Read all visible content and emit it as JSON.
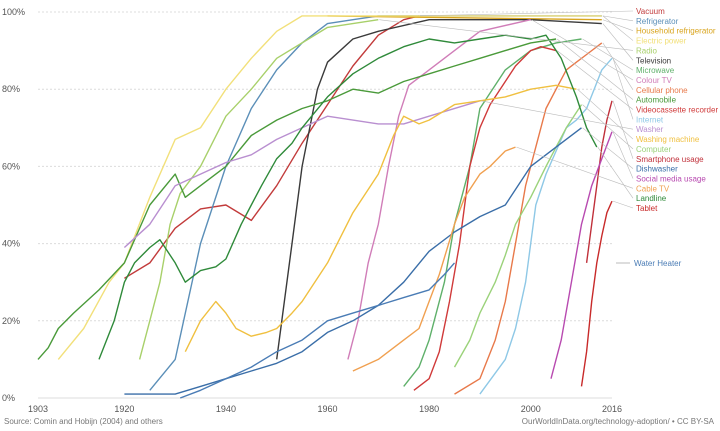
{
  "footer": {
    "source": "Source: Comin and Hobijn (2004) and others",
    "credit": "OurWorldInData.org/technology-adoption/ • CC BY-SA"
  },
  "chart_data": {
    "type": "line",
    "title": "",
    "xlabel": "",
    "ylabel": "",
    "xlim": [
      1903,
      2016
    ],
    "ylim": [
      0,
      100
    ],
    "x_ticks": [
      1903,
      1920,
      1940,
      1960,
      1980,
      2000,
      2016
    ],
    "y_ticks": [
      0,
      20,
      40,
      60,
      80,
      100
    ],
    "y_tick_suffix": "%",
    "grid": "horizontal",
    "legend_position": "right",
    "series": [
      {
        "name": "Vacuum",
        "color": "#c23b3b",
        "points": [
          [
            1920,
            31
          ],
          [
            1925,
            35
          ],
          [
            1930,
            44
          ],
          [
            1935,
            49
          ],
          [
            1940,
            50
          ],
          [
            1945,
            46
          ],
          [
            1950,
            55
          ],
          [
            1955,
            66
          ],
          [
            1960,
            76
          ],
          [
            1965,
            86
          ],
          [
            1970,
            94
          ],
          [
            1975,
            98
          ],
          [
            1978,
            99
          ]
        ]
      },
      {
        "name": "Refrigerator",
        "color": "#5b8fb8",
        "points": [
          [
            1925,
            2
          ],
          [
            1930,
            10
          ],
          [
            1935,
            40
          ],
          [
            1940,
            60
          ],
          [
            1945,
            75
          ],
          [
            1950,
            85
          ],
          [
            1955,
            92
          ],
          [
            1960,
            97
          ],
          [
            1965,
            98
          ],
          [
            1970,
            99
          ],
          [
            2014,
            99
          ]
        ]
      },
      {
        "name": "Household refrigerator",
        "color": "#d9a51f",
        "points": [
          [
            1960,
            99
          ],
          [
            2014,
            98
          ]
        ]
      },
      {
        "name": "Electric power",
        "color": "#f2e07a",
        "points": [
          [
            1907,
            10
          ],
          [
            1912,
            18
          ],
          [
            1917,
            30
          ],
          [
            1920,
            35
          ],
          [
            1925,
            52
          ],
          [
            1930,
            67
          ],
          [
            1935,
            70
          ],
          [
            1940,
            80
          ],
          [
            1945,
            88
          ],
          [
            1950,
            95
          ],
          [
            1955,
            99
          ],
          [
            2014,
            99
          ]
        ]
      },
      {
        "name": "Radio",
        "color": "#a8d06a",
        "points": [
          [
            1923,
            10
          ],
          [
            1925,
            20
          ],
          [
            1927,
            30
          ],
          [
            1929,
            45
          ],
          [
            1931,
            53
          ],
          [
            1935,
            60
          ],
          [
            1940,
            73
          ],
          [
            1945,
            80
          ],
          [
            1950,
            88
          ],
          [
            1955,
            92
          ],
          [
            1960,
            96
          ],
          [
            1970,
            98
          ]
        ]
      },
      {
        "name": "Television",
        "color": "#3a3a3a",
        "points": [
          [
            1950,
            10
          ],
          [
            1953,
            40
          ],
          [
            1955,
            60
          ],
          [
            1958,
            80
          ],
          [
            1960,
            87
          ],
          [
            1965,
            93
          ],
          [
            1970,
            95
          ],
          [
            1980,
            98
          ],
          [
            2000,
            98
          ],
          [
            2014,
            97
          ]
        ]
      },
      {
        "name": "Microwave",
        "color": "#5fb06a",
        "points": [
          [
            1975,
            3
          ],
          [
            1978,
            8
          ],
          [
            1980,
            15
          ],
          [
            1983,
            30
          ],
          [
            1985,
            45
          ],
          [
            1988,
            60
          ],
          [
            1990,
            75
          ],
          [
            1995,
            85
          ],
          [
            2000,
            90
          ],
          [
            2005,
            92
          ],
          [
            2010,
            93
          ]
        ]
      },
      {
        "name": "Colour TV",
        "color": "#d07db8",
        "points": [
          [
            1964,
            10
          ],
          [
            1966,
            20
          ],
          [
            1968,
            35
          ],
          [
            1970,
            45
          ],
          [
            1972,
            60
          ],
          [
            1974,
            73
          ],
          [
            1976,
            81
          ],
          [
            1980,
            85
          ],
          [
            1985,
            90
          ],
          [
            1990,
            95
          ],
          [
            2000,
            98
          ]
        ]
      },
      {
        "name": "Cellular phone",
        "color": "#e8794a",
        "points": [
          [
            1985,
            1
          ],
          [
            1990,
            5
          ],
          [
            1993,
            15
          ],
          [
            1995,
            25
          ],
          [
            1997,
            40
          ],
          [
            1999,
            55
          ],
          [
            2001,
            65
          ],
          [
            2003,
            75
          ],
          [
            2005,
            80
          ],
          [
            2007,
            85
          ],
          [
            2009,
            87
          ],
          [
            2011,
            89
          ],
          [
            2014,
            92
          ]
        ]
      },
      {
        "name": "Automobile",
        "color": "#4a9a3a",
        "points": [
          [
            1903,
            10
          ],
          [
            1905,
            13
          ],
          [
            1907,
            18
          ],
          [
            1910,
            22
          ],
          [
            1915,
            28
          ],
          [
            1920,
            35
          ],
          [
            1925,
            50
          ],
          [
            1930,
            58
          ],
          [
            1932,
            52
          ],
          [
            1935,
            55
          ],
          [
            1940,
            60
          ],
          [
            1945,
            68
          ],
          [
            1950,
            72
          ],
          [
            1955,
            75
          ],
          [
            1960,
            77
          ],
          [
            1965,
            80
          ],
          [
            1970,
            79
          ],
          [
            1975,
            82
          ],
          [
            1980,
            84
          ],
          [
            1985,
            86
          ],
          [
            1990,
            88
          ],
          [
            1995,
            90
          ],
          [
            2000,
            92
          ],
          [
            2005,
            93
          ]
        ]
      },
      {
        "name": "Videocassette recorder",
        "color": "#d03a3a",
        "points": [
          [
            1977,
            2
          ],
          [
            1980,
            5
          ],
          [
            1982,
            12
          ],
          [
            1984,
            25
          ],
          [
            1986,
            40
          ],
          [
            1988,
            60
          ],
          [
            1990,
            70
          ],
          [
            1992,
            76
          ],
          [
            1995,
            82
          ],
          [
            1997,
            86
          ],
          [
            2000,
            90
          ],
          [
            2002,
            91
          ],
          [
            2005,
            90
          ]
        ]
      },
      {
        "name": "Internet",
        "color": "#8ec8e6",
        "points": [
          [
            1990,
            1
          ],
          [
            1995,
            10
          ],
          [
            1997,
            18
          ],
          [
            1999,
            30
          ],
          [
            2001,
            50
          ],
          [
            2003,
            58
          ],
          [
            2005,
            64
          ],
          [
            2007,
            70
          ],
          [
            2009,
            72
          ],
          [
            2011,
            75
          ],
          [
            2014,
            85
          ],
          [
            2016,
            88
          ]
        ]
      },
      {
        "name": "Washer",
        "color": "#b98fd0",
        "points": [
          [
            1920,
            39
          ],
          [
            1925,
            45
          ],
          [
            1930,
            55
          ],
          [
            1935,
            58
          ],
          [
            1940,
            61
          ],
          [
            1945,
            63
          ],
          [
            1950,
            67
          ],
          [
            1955,
            70
          ],
          [
            1960,
            73
          ],
          [
            1965,
            72
          ],
          [
            1970,
            71
          ],
          [
            1975,
            71
          ],
          [
            1980,
            73
          ],
          [
            1990,
            77
          ]
        ]
      },
      {
        "name": "Washing machine",
        "color": "#f0c040",
        "points": [
          [
            1932,
            12
          ],
          [
            1935,
            20
          ],
          [
            1938,
            25
          ],
          [
            1940,
            22
          ],
          [
            1942,
            18
          ],
          [
            1945,
            16
          ],
          [
            1948,
            17
          ],
          [
            1950,
            18
          ],
          [
            1953,
            22
          ],
          [
            1955,
            25
          ],
          [
            1960,
            35
          ],
          [
            1965,
            48
          ],
          [
            1970,
            58
          ],
          [
            1973,
            68
          ],
          [
            1975,
            73
          ],
          [
            1978,
            71
          ],
          [
            1980,
            72
          ],
          [
            1985,
            76
          ],
          [
            1990,
            77
          ],
          [
            1995,
            78
          ],
          [
            2000,
            80
          ],
          [
            2005,
            81
          ],
          [
            2009,
            80
          ]
        ]
      },
      {
        "name": "Computer",
        "color": "#9bd27a",
        "points": [
          [
            1985,
            8
          ],
          [
            1988,
            15
          ],
          [
            1990,
            22
          ],
          [
            1993,
            30
          ],
          [
            1995,
            37
          ],
          [
            1997,
            45
          ],
          [
            2000,
            52
          ],
          [
            2003,
            60
          ],
          [
            2005,
            65
          ],
          [
            2007,
            70
          ],
          [
            2010,
            76
          ]
        ]
      },
      {
        "name": "Smartphone usage",
        "color": "#c0303a",
        "points": [
          [
            2011,
            35
          ],
          [
            2012,
            45
          ],
          [
            2013,
            55
          ],
          [
            2014,
            65
          ],
          [
            2015,
            72
          ],
          [
            2016,
            77
          ]
        ]
      },
      {
        "name": "Dishwasher",
        "color": "#3a6ea8",
        "points": [
          [
            1920,
            1
          ],
          [
            1925,
            1
          ],
          [
            1930,
            1
          ],
          [
            1935,
            3
          ],
          [
            1940,
            5
          ],
          [
            1945,
            7
          ],
          [
            1950,
            9
          ],
          [
            1955,
            12
          ],
          [
            1960,
            17
          ],
          [
            1965,
            20
          ],
          [
            1970,
            24
          ],
          [
            1975,
            30
          ],
          [
            1980,
            38
          ],
          [
            1985,
            43
          ],
          [
            1990,
            47
          ],
          [
            1995,
            50
          ],
          [
            2000,
            60
          ],
          [
            2005,
            65
          ],
          [
            2010,
            70
          ]
        ]
      },
      {
        "name": "Social media usage",
        "color": "#b84ab0",
        "points": [
          [
            2004,
            5
          ],
          [
            2006,
            15
          ],
          [
            2008,
            30
          ],
          [
            2010,
            45
          ],
          [
            2012,
            55
          ],
          [
            2014,
            62
          ],
          [
            2016,
            69
          ]
        ]
      },
      {
        "name": "Cable TV",
        "color": "#f0a050",
        "points": [
          [
            1965,
            7
          ],
          [
            1970,
            10
          ],
          [
            1975,
            15
          ],
          [
            1978,
            18
          ],
          [
            1980,
            25
          ],
          [
            1982,
            32
          ],
          [
            1985,
            45
          ],
          [
            1987,
            52
          ],
          [
            1990,
            58
          ],
          [
            1992,
            60
          ],
          [
            1995,
            64
          ],
          [
            1997,
            65
          ]
        ]
      },
      {
        "name": "Landline",
        "color": "#2f8a3a",
        "points": [
          [
            1915,
            10
          ],
          [
            1918,
            20
          ],
          [
            1920,
            30
          ],
          [
            1922,
            35
          ],
          [
            1925,
            39
          ],
          [
            1927,
            41
          ],
          [
            1930,
            35
          ],
          [
            1932,
            30
          ],
          [
            1935,
            33
          ],
          [
            1938,
            34
          ],
          [
            1940,
            36
          ],
          [
            1943,
            45
          ],
          [
            1945,
            50
          ],
          [
            1947,
            55
          ],
          [
            1950,
            62
          ],
          [
            1953,
            66
          ],
          [
            1955,
            70
          ],
          [
            1960,
            78
          ],
          [
            1965,
            84
          ],
          [
            1970,
            88
          ],
          [
            1975,
            91
          ],
          [
            1980,
            93
          ],
          [
            1985,
            92
          ],
          [
            1990,
            93
          ],
          [
            1995,
            94
          ],
          [
            2000,
            93
          ],
          [
            2003,
            94
          ],
          [
            2006,
            88
          ],
          [
            2009,
            78
          ],
          [
            2011,
            70
          ],
          [
            2013,
            65
          ]
        ]
      },
      {
        "name": "Tablet",
        "color": "#c82a2a",
        "points": [
          [
            2010,
            3
          ],
          [
            2011,
            12
          ],
          [
            2012,
            25
          ],
          [
            2013,
            35
          ],
          [
            2014,
            42
          ],
          [
            2015,
            48
          ],
          [
            2016,
            51
          ]
        ]
      }
    ],
    "annotations": [
      {
        "label": "Water Heater",
        "color": "#4a7cb5",
        "points": [
          [
            1931,
            0
          ],
          [
            1935,
            2
          ],
          [
            1940,
            5
          ],
          [
            1945,
            8
          ],
          [
            1950,
            12
          ],
          [
            1955,
            15
          ],
          [
            1960,
            20
          ],
          [
            1965,
            22
          ],
          [
            1970,
            24
          ],
          [
            1975,
            26
          ],
          [
            1980,
            28
          ],
          [
            1983,
            32
          ],
          [
            1985,
            35
          ]
        ]
      }
    ]
  }
}
